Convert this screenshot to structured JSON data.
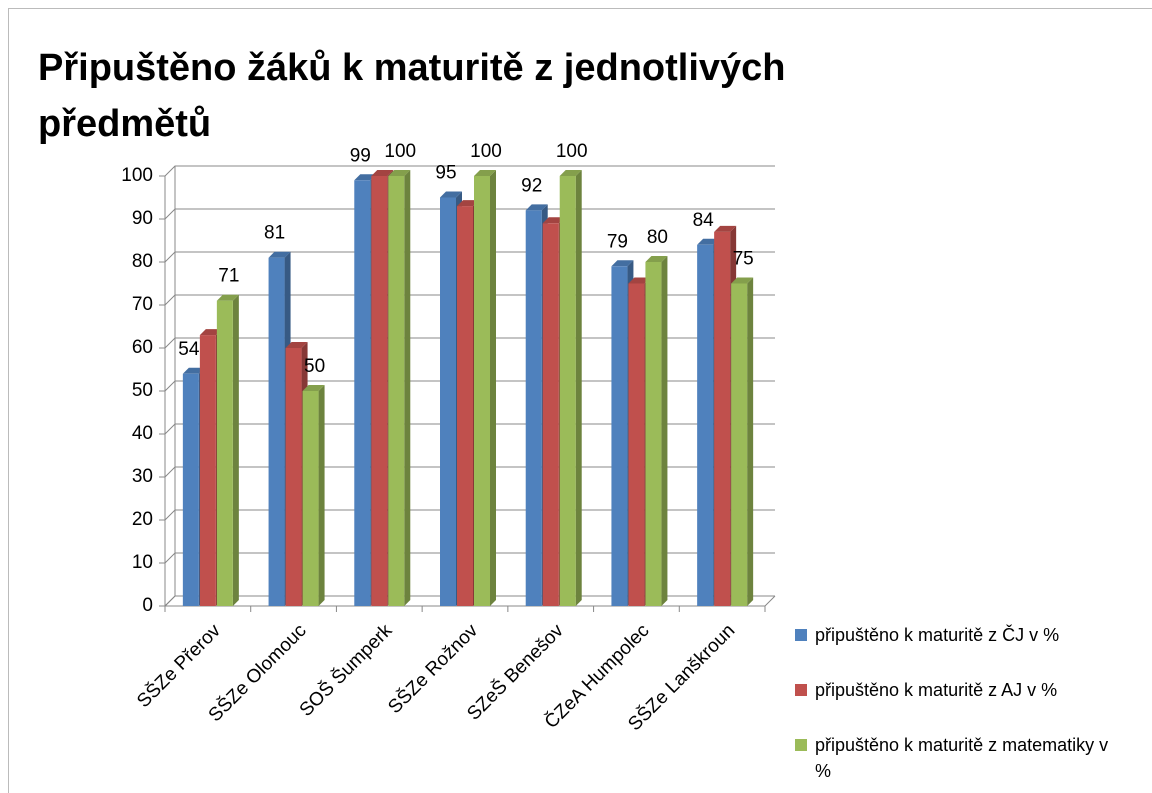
{
  "chart_data": {
    "type": "bar3d",
    "title": "Připuštěno žáků k maturitě z jednotlivých předmětů",
    "categories": [
      "SŠZe Přerov",
      "SŠZe Olomouc",
      "SOŠ Šumperk",
      "SŠZe Rožnov",
      "SZeŠ Benešov",
      "ČZeA Humpolec",
      "SŠZe Lanškroun"
    ],
    "series": [
      {
        "name": "připuštěno k maturitě z ČJ v %",
        "color": "#4f81bd",
        "show_labels": true,
        "values": [
          54,
          81,
          99,
          95,
          92,
          79,
          84
        ]
      },
      {
        "name": "připuštěno k maturitě z AJ v %",
        "color": "#c0504d",
        "show_labels": false,
        "values": [
          63,
          60,
          100,
          93,
          89,
          75,
          87
        ]
      },
      {
        "name": "připuštěno k maturitě z matematiky v %",
        "color": "#9bbb59",
        "show_labels": true,
        "values": [
          71,
          50,
          100,
          100,
          100,
          80,
          75
        ]
      }
    ],
    "ylim": [
      0,
      100
    ],
    "yticks": [
      0,
      10,
      20,
      30,
      40,
      50,
      60,
      70,
      80,
      90,
      100
    ],
    "grid": true,
    "legend": "right"
  }
}
